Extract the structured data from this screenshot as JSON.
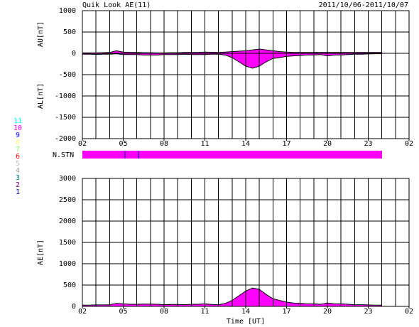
{
  "header": {
    "title": "Quik Look AE(11)",
    "date_range": "2011/10/06-2011/10/07",
    "station_label": "N.STN"
  },
  "station_legend": [
    {
      "label": "11",
      "color": "#00ffff"
    },
    {
      "label": "10",
      "color": "#ff00ff"
    },
    {
      "label": "9",
      "color": "#0000ff"
    },
    {
      "label": "8",
      "color": "#ffff80"
    },
    {
      "label": "7",
      "color": "#80ff80"
    },
    {
      "label": "6",
      "color": "#ff0000"
    },
    {
      "label": "5",
      "color": "#c0c0c0"
    },
    {
      "label": "4",
      "color": "#a0a0a0"
    },
    {
      "label": "3",
      "color": "#008080"
    },
    {
      "label": "2",
      "color": "#800080"
    },
    {
      "label": "1",
      "color": "#0000a0"
    }
  ],
  "chart_data": [
    {
      "type": "range",
      "ylabels": [
        "AU[nT]",
        "AL[nT]"
      ],
      "fill": "#ff00ff",
      "grid": true,
      "xgrid_step": 1,
      "xlim": [
        2,
        26
      ],
      "xticks": [
        {
          "value": 2,
          "label": "02"
        },
        {
          "value": 5,
          "label": "05"
        },
        {
          "value": 8,
          "label": "08"
        },
        {
          "value": 11,
          "label": "11"
        },
        14,
        17,
        20,
        23,
        {
          "value": 26,
          "label": "02"
        }
      ],
      "ylim": [
        -2000,
        1000
      ],
      "yticks": [
        -2000,
        -1500,
        -1000,
        -500,
        0,
        500,
        1000
      ],
      "x": [
        2,
        2.5,
        3,
        3.5,
        4,
        4.5,
        5,
        5.5,
        6,
        6.5,
        7,
        7.5,
        8,
        8.5,
        9,
        9.5,
        10,
        10.5,
        11,
        11.5,
        12,
        12.5,
        13,
        13.5,
        14,
        14.5,
        15,
        15.5,
        16,
        16.5,
        17,
        17.5,
        18,
        18.5,
        19,
        19.5,
        20,
        20.5,
        21,
        21.5,
        22,
        22.5,
        23,
        23.5,
        24
      ],
      "series": [
        {
          "name": "AU",
          "color": "#000000",
          "values": [
            10,
            10,
            10,
            15,
            20,
            60,
            30,
            20,
            20,
            15,
            15,
            10,
            10,
            15,
            15,
            20,
            20,
            20,
            30,
            25,
            20,
            30,
            40,
            50,
            60,
            80,
            100,
            80,
            60,
            40,
            30,
            20,
            20,
            20,
            20,
            20,
            20,
            20,
            20,
            20,
            20,
            20,
            20,
            20,
            20
          ]
        },
        {
          "name": "AL",
          "color": "#000000",
          "values": [
            -20,
            -20,
            -25,
            -20,
            -20,
            -10,
            -30,
            -30,
            -30,
            -40,
            -40,
            -40,
            -30,
            -30,
            -30,
            -20,
            -30,
            -30,
            -30,
            -20,
            -20,
            -40,
            -100,
            -200,
            -300,
            -350,
            -300,
            -200,
            -120,
            -100,
            -70,
            -60,
            -50,
            -40,
            -40,
            -30,
            -60,
            -40,
            -40,
            -30,
            -20,
            -20,
            -15,
            -10,
            -10
          ]
        }
      ]
    },
    {
      "type": "area",
      "ylabels": [
        "AE[nT]"
      ],
      "xlabel": "Time [UT]",
      "fill": "#ff00ff",
      "grid": true,
      "xgrid_step": 1,
      "xlim": [
        2,
        26
      ],
      "xticks": [
        {
          "value": 2,
          "label": "02"
        },
        {
          "value": 5,
          "label": "05"
        },
        {
          "value": 8,
          "label": "08"
        },
        {
          "value": 11,
          "label": "11"
        },
        14,
        17,
        20,
        23,
        {
          "value": 26,
          "label": "02"
        }
      ],
      "ylim": [
        0,
        3000
      ],
      "yticks": [
        0,
        500,
        1000,
        1500,
        2000,
        2500,
        3000
      ],
      "x": [
        2,
        2.5,
        3,
        3.5,
        4,
        4.5,
        5,
        5.5,
        6,
        6.5,
        7,
        7.5,
        8,
        8.5,
        9,
        9.5,
        10,
        10.5,
        11,
        11.5,
        12,
        12.5,
        13,
        13.5,
        14,
        14.5,
        15,
        15.5,
        16,
        16.5,
        17,
        17.5,
        18,
        18.5,
        19,
        19.5,
        20,
        20.5,
        21,
        21.5,
        22,
        22.5,
        23,
        23.5,
        24
      ],
      "series": [
        {
          "name": "AE",
          "color": "#000000",
          "values": [
            30,
            30,
            35,
            35,
            40,
            70,
            60,
            50,
            50,
            55,
            55,
            50,
            40,
            45,
            45,
            40,
            50,
            50,
            60,
            45,
            40,
            70,
            140,
            250,
            360,
            430,
            400,
            280,
            180,
            140,
            100,
            80,
            70,
            60,
            60,
            50,
            80,
            60,
            60,
            50,
            40,
            40,
            35,
            30,
            30
          ]
        }
      ]
    }
  ]
}
